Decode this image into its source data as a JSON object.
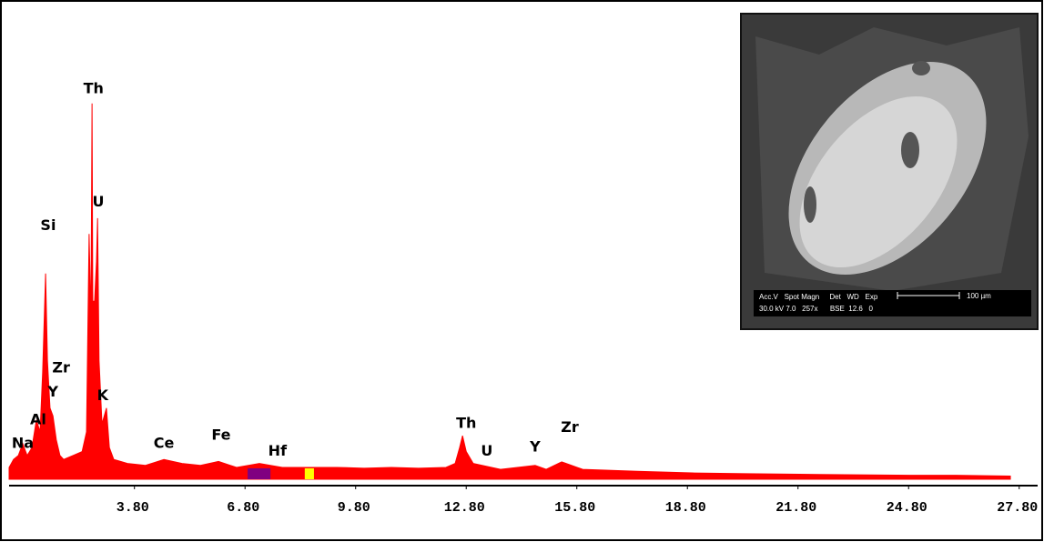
{
  "chart_data": {
    "type": "area",
    "xlim": [
      0.4,
      28.3
    ],
    "ylim": [
      0,
      120
    ],
    "xticks": [
      {
        "value": 3.8,
        "label": "3.80"
      },
      {
        "value": 6.8,
        "label": "6.80"
      },
      {
        "value": 9.8,
        "label": "9.80"
      },
      {
        "value": 12.8,
        "label": "12.80"
      },
      {
        "value": 15.8,
        "label": "15.80"
      },
      {
        "value": 18.8,
        "label": "18.80"
      },
      {
        "value": 21.8,
        "label": "21.80"
      },
      {
        "value": 24.8,
        "label": "24.80"
      },
      {
        "value": 27.8,
        "label": "27.80"
      }
    ],
    "series": [
      {
        "color": "#ff0000",
        "x": [
          0.4,
          0.52,
          0.65,
          0.77,
          0.89,
          1.02,
          1.14,
          1.24,
          1.31,
          1.39,
          1.44,
          1.51,
          1.59,
          1.68,
          1.78,
          1.88,
          2.13,
          2.38,
          2.5,
          2.57,
          2.62,
          2.65,
          2.67,
          2.72,
          2.77,
          2.8,
          2.84,
          2.92,
          3.04,
          3.12,
          3.24,
          3.61,
          4.1,
          4.6,
          5.09,
          5.59,
          6.08,
          6.57,
          7.19,
          7.81,
          8.55,
          9.29,
          10.03,
          10.77,
          11.51,
          12.25,
          12.5,
          12.62,
          12.7,
          12.8,
          12.99,
          13.73,
          14.67,
          14.97,
          15.39,
          15.96,
          17.44,
          18.92,
          20.4,
          22.38,
          24.84,
          26.08,
          27.56
        ],
        "values": [
          3,
          5,
          6,
          9,
          6,
          8,
          15,
          12,
          27,
          52,
          30,
          18,
          16,
          10,
          6,
          5,
          6,
          7,
          12,
          62,
          40,
          95,
          45,
          45,
          55,
          66,
          30,
          14,
          18,
          8,
          5,
          4,
          3.5,
          5,
          4,
          3.5,
          4.5,
          3,
          4,
          3,
          3,
          3,
          2.8,
          3,
          2.8,
          3,
          4,
          8,
          11,
          7,
          4,
          2.5,
          3.5,
          2.5,
          4.4,
          2.5,
          2,
          1.6,
          1.4,
          1.2,
          1,
          1,
          0.8
        ]
      }
    ],
    "regions": [
      {
        "xlim": [
          6.87,
          7.49
        ],
        "color": "#800080"
      },
      {
        "xlim": [
          8.42,
          8.67
        ],
        "color": "#ffff00"
      }
    ],
    "annotations": [
      {
        "text": "Th",
        "x": 2.69,
        "y": 98.6
      },
      {
        "text": "Si",
        "x": 1.46,
        "y": 64
      },
      {
        "text": "U",
        "x": 2.82,
        "y": 70
      },
      {
        "text": "Zr",
        "x": 1.81,
        "y": 28
      },
      {
        "text": "Y",
        "x": 1.59,
        "y": 22
      },
      {
        "text": "K",
        "x": 2.94,
        "y": 21
      },
      {
        "text": "Al",
        "x": 1.19,
        "y": 15
      },
      {
        "text": "Na",
        "x": 0.77,
        "y": 9
      },
      {
        "text": "Ce",
        "x": 4.6,
        "y": 9
      },
      {
        "text": "Fe",
        "x": 6.15,
        "y": 11
      },
      {
        "text": "Hf",
        "x": 7.68,
        "y": 7
      },
      {
        "text": "Th",
        "x": 12.8,
        "y": 14
      },
      {
        "text": "U",
        "x": 13.36,
        "y": 7
      },
      {
        "text": "Y",
        "x": 14.67,
        "y": 8
      },
      {
        "text": "Zr",
        "x": 15.61,
        "y": 13
      }
    ]
  },
  "inset": {
    "header": "Acc.V   Spot Magn     Det   WD   Exp",
    "values": "30.0 kV 7.0   257x      BSE  12.6   0",
    "scale_label": "100 µm"
  }
}
